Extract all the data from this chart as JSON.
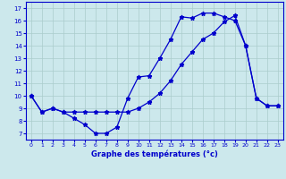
{
  "xlabel": "Graphe des températures (°c)",
  "bg_color": "#cce8ec",
  "line_color": "#0000cc",
  "ylim": [
    6.5,
    17.5
  ],
  "xlim": [
    -0.5,
    23.5
  ],
  "yticks": [
    7,
    8,
    9,
    10,
    11,
    12,
    13,
    14,
    15,
    16,
    17
  ],
  "xticks": [
    0,
    1,
    2,
    3,
    4,
    5,
    6,
    7,
    8,
    9,
    10,
    11,
    12,
    13,
    14,
    15,
    16,
    17,
    18,
    19,
    20,
    21,
    22,
    23
  ],
  "line1_x": [
    0,
    1,
    2,
    3,
    4,
    5,
    6,
    7,
    8,
    9,
    10,
    11,
    12,
    13,
    14,
    15,
    16,
    17,
    18,
    19,
    20,
    21,
    22,
    23
  ],
  "line1_y": [
    10.0,
    8.7,
    9.0,
    8.7,
    8.7,
    8.7,
    8.7,
    8.7,
    8.7,
    8.7,
    9.0,
    9.5,
    10.2,
    11.2,
    12.5,
    13.5,
    14.5,
    15.0,
    15.9,
    16.4,
    14.0,
    9.8,
    9.2,
    9.2
  ],
  "line2_x": [
    0,
    1,
    2,
    3,
    4,
    5,
    6,
    7,
    8,
    9,
    10,
    11,
    12,
    13,
    14,
    15,
    16,
    17,
    18,
    19,
    20,
    21,
    22,
    23
  ],
  "line2_y": [
    10.0,
    8.7,
    9.0,
    8.7,
    8.2,
    7.7,
    7.0,
    7.0,
    7.5,
    9.8,
    11.5,
    11.6,
    13.0,
    14.5,
    16.3,
    16.2,
    16.6,
    16.6,
    16.3,
    16.0,
    14.0,
    9.8,
    9.2,
    9.2
  ]
}
